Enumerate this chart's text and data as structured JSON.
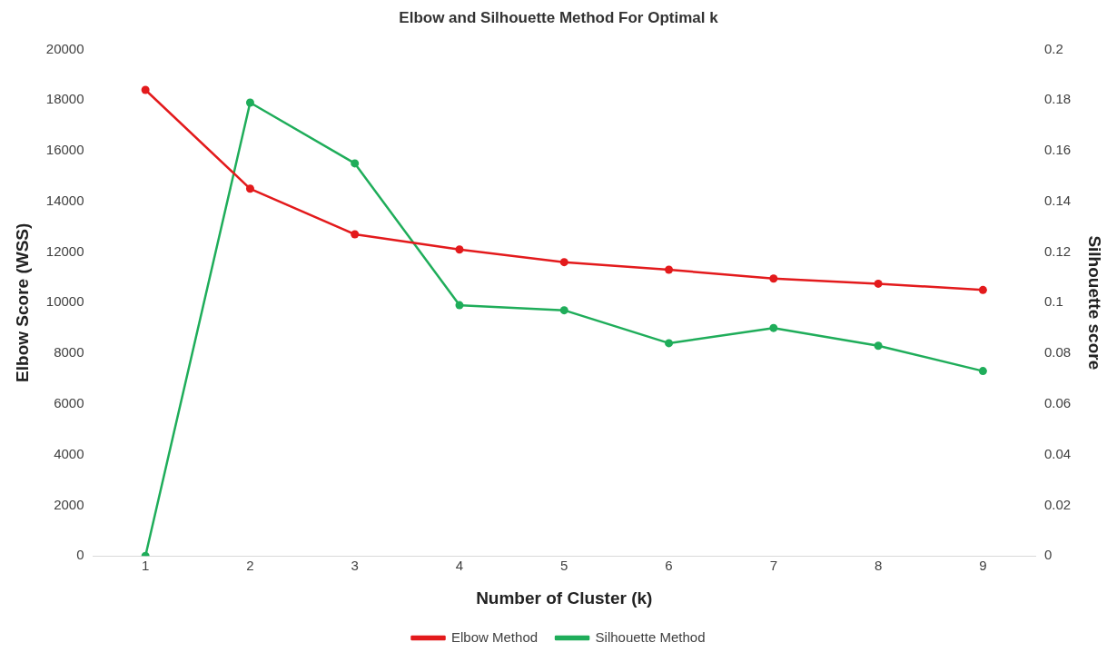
{
  "chart_data": {
    "type": "line",
    "title": "Elbow and Silhouette Method For Optimal k",
    "xlabel": "Number of Cluster (k)",
    "ylabel": "Elbow Score (WSS)",
    "y2label": "Silhouette score",
    "categories": [
      "1",
      "2",
      "3",
      "4",
      "5",
      "6",
      "7",
      "8",
      "9"
    ],
    "series": [
      {
        "name": "Elbow Method",
        "color": "#e31a1c",
        "values": [
          18400,
          14500,
          12700,
          12100,
          11600,
          11300,
          10950,
          10750,
          10500
        ]
      },
      {
        "name": "Silhouette Method",
        "color": "#1fad5a",
        "axis": "y2",
        "values": [
          0,
          0.179,
          0.155,
          0.099,
          0.097,
          0.084,
          0.09,
          0.083,
          0.073
        ]
      }
    ],
    "ylim": [
      0,
      20000
    ],
    "yticks": [
      0,
      2000,
      4000,
      6000,
      8000,
      10000,
      12000,
      14000,
      16000,
      18000,
      20000
    ],
    "y2lim": [
      0,
      0.2
    ],
    "y2ticks": [
      0,
      0.02,
      0.04,
      0.06,
      0.08,
      0.1,
      0.12,
      0.14,
      0.16,
      0.18,
      0.2
    ],
    "legend": "bottom",
    "marker": "circle",
    "line_style": "solid",
    "grid": false
  }
}
